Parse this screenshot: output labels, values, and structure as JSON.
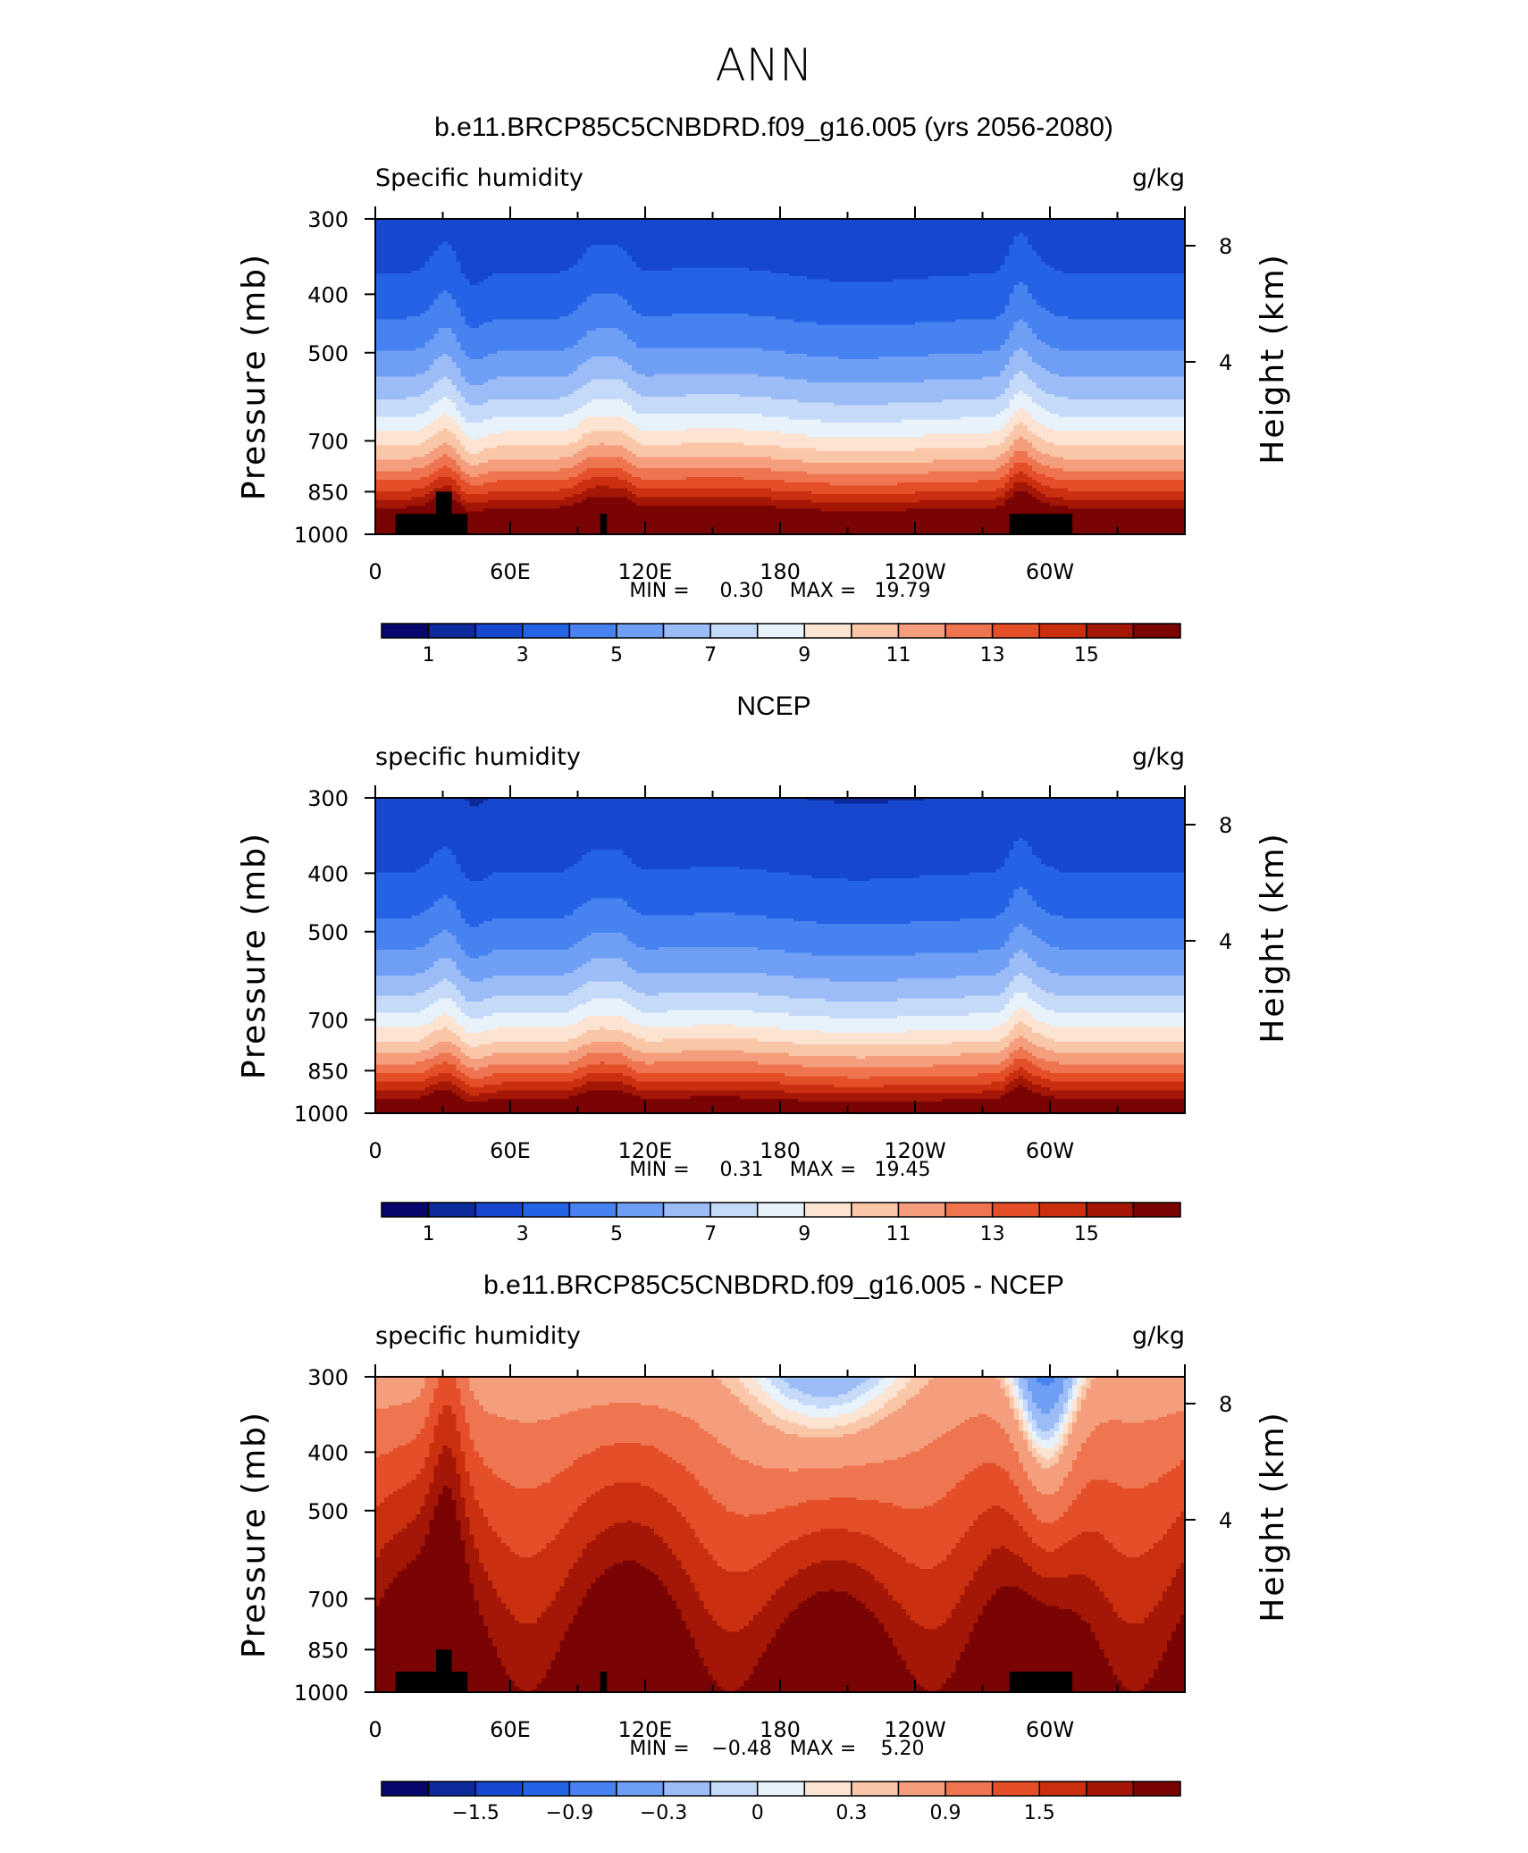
{
  "page": {
    "main_title": "ANN"
  },
  "palette": {
    "colors": [
      "#06066c",
      "#0c2a9c",
      "#1548cf",
      "#2563e6",
      "#4682f0",
      "#6f9ff4",
      "#9cbcf7",
      "#c5daf9",
      "#e8f2fb",
      "#fde3d1",
      "#f9c6a8",
      "#f49e7d",
      "#ee7550",
      "#e44e28",
      "#ca2f0f",
      "#a41606",
      "#7a0404"
    ]
  },
  "chart_data": [
    {
      "type": "heatmap",
      "title": "b.e11.BRCP85C5CNBDRD.f09_g16.005 (yrs 2056-2080)",
      "left_label": "Specific humidity",
      "right_label": "g/kg",
      "ylabel": "Pressure (mb)",
      "y2label": "Height (km)",
      "yticks": [
        "300",
        "400",
        "500",
        "700",
        "850",
        "1000"
      ],
      "y2ticks": [
        "8",
        "4"
      ],
      "xticks": [
        "0",
        "60E",
        "120E",
        "180",
        "120W",
        "60W"
      ],
      "stats": {
        "min_label": "MIN =",
        "min": "0.30",
        "max_label": "MAX =",
        "max": "19.79"
      },
      "colorbar_labels": [
        "1",
        "3",
        "5",
        "7",
        "9",
        "11",
        "13",
        "15"
      ],
      "levels": [
        0.5,
        1,
        2,
        3,
        4,
        5,
        6,
        7,
        8,
        9,
        10,
        11,
        12,
        13,
        14,
        15
      ]
    },
    {
      "type": "heatmap",
      "title": "NCEP",
      "left_label": "specific humidity",
      "right_label": "g/kg",
      "ylabel": "Pressure (mb)",
      "y2label": "Height (km)",
      "yticks": [
        "300",
        "400",
        "500",
        "700",
        "850",
        "1000"
      ],
      "y2ticks": [
        "8",
        "4"
      ],
      "xticks": [
        "0",
        "60E",
        "120E",
        "180",
        "120W",
        "60W"
      ],
      "stats": {
        "min_label": "MIN =",
        "min": "0.31",
        "max_label": "MAX =",
        "max": "19.45"
      },
      "colorbar_labels": [
        "1",
        "3",
        "5",
        "7",
        "9",
        "11",
        "13",
        "15"
      ],
      "levels": [
        0.5,
        1,
        2,
        3,
        4,
        5,
        6,
        7,
        8,
        9,
        10,
        11,
        12,
        13,
        14,
        15
      ]
    },
    {
      "type": "heatmap",
      "title": "b.e11.BRCP85C5CNBDRD.f09_g16.005 - NCEP",
      "left_label": "specific humidity",
      "right_label": "g/kg",
      "ylabel": "Pressure (mb)",
      "y2label": "Height (km)",
      "yticks": [
        "300",
        "400",
        "500",
        "700",
        "850",
        "1000"
      ],
      "y2ticks": [
        "8",
        "4"
      ],
      "xticks": [
        "0",
        "60E",
        "120E",
        "180",
        "120W",
        "60W"
      ],
      "stats": {
        "min_label": "MIN =",
        "min": "−0.48",
        "max_label": "MAX =",
        "max": "5.20"
      },
      "colorbar_labels": [
        "−1.5",
        "−0.9",
        "−0.3",
        "0",
        "0.3",
        "0.9",
        "1.5"
      ],
      "levels": [
        -1.8,
        -1.5,
        -1.2,
        -0.9,
        -0.6,
        -0.3,
        -0.1,
        0,
        0.1,
        0.2,
        0.3,
        0.6,
        0.9,
        1.2,
        1.5,
        1.8
      ]
    }
  ]
}
